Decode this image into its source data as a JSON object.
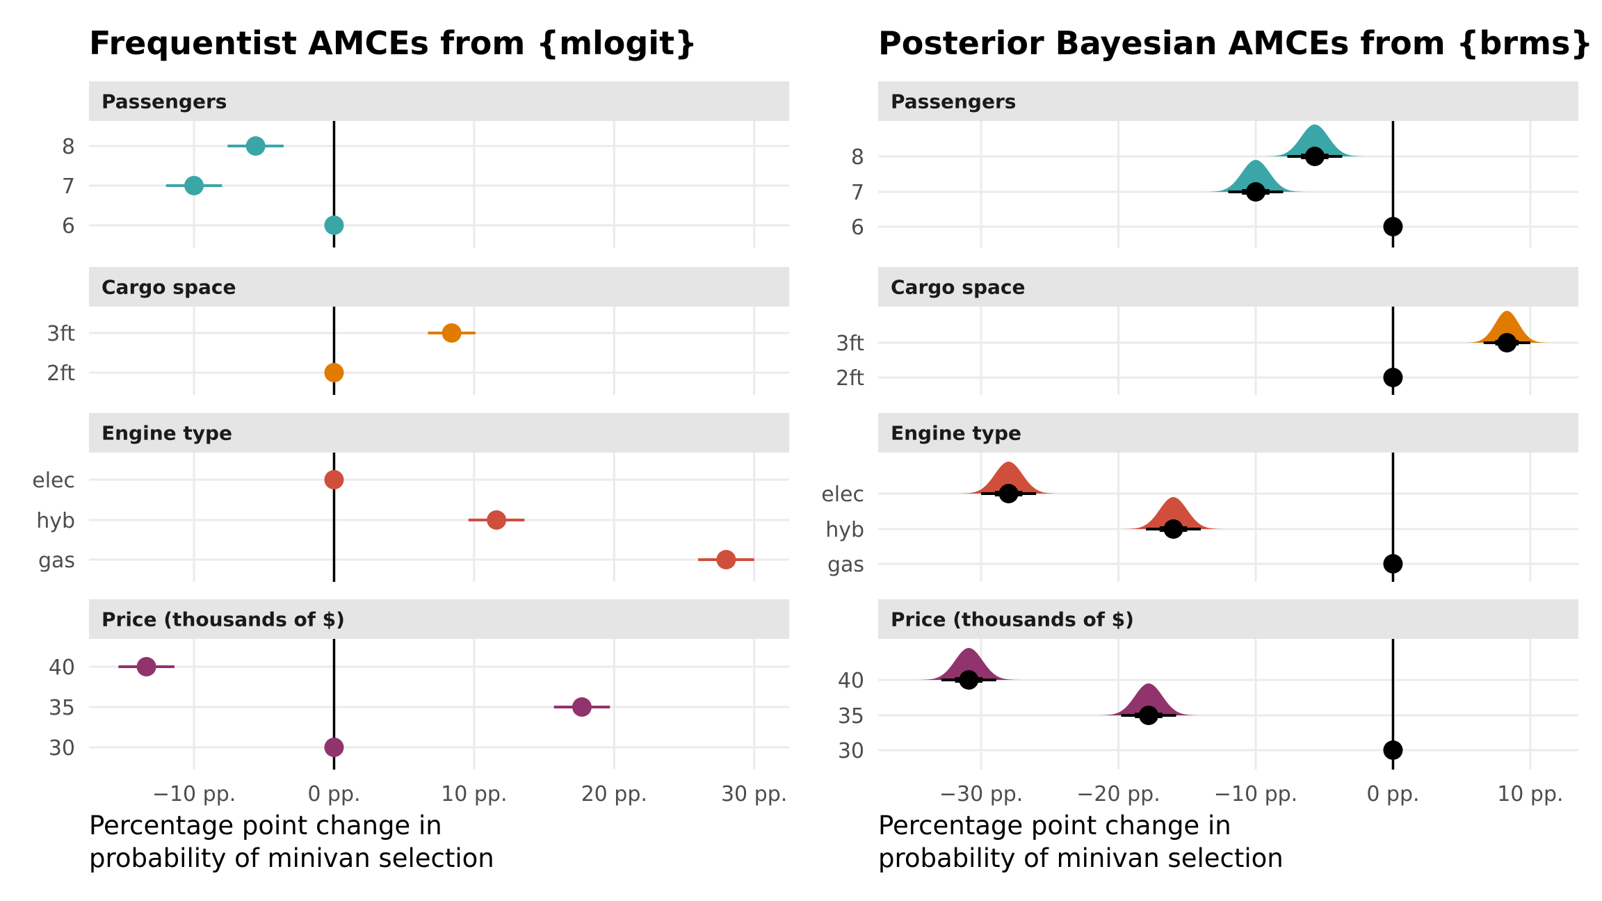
{
  "colors": {
    "Passengers": "#3aa6a8",
    "Cargo space": "#e07b00",
    "Engine type": "#cf4f3c",
    "Price (thousands of $)": "#91336d",
    "grid": "#ebebeb",
    "strip": "#e5e5e5",
    "zero_line": "#000000",
    "posterior_point": "#000000"
  },
  "chart_data": [
    {
      "type": "scatter",
      "title": "Frequentist AMCEs from {mlogit}",
      "xlabel": "Percentage point change in probability of minivan selection",
      "xlabel_lines": [
        "Percentage point change in",
        "probability of minivan selection"
      ],
      "ylabel": "",
      "xlim": [
        -17.5,
        32.5
      ],
      "x_ticks": [
        -10,
        0,
        10,
        20,
        30
      ],
      "x_tick_labels": [
        "−10 pp.",
        "0 pp.",
        "10 pp.",
        "20 pp.",
        "30 pp."
      ],
      "grid": true,
      "facets": [
        {
          "name": "Passengers",
          "levels": [
            "8",
            "7",
            "6"
          ],
          "estimates": [
            -5.6,
            -10.0,
            0
          ],
          "lower": [
            -7.6,
            -12.0,
            0
          ],
          "upper": [
            -3.6,
            -8.0,
            0
          ]
        },
        {
          "name": "Cargo space",
          "levels": [
            "3ft",
            "2ft"
          ],
          "estimates": [
            8.4,
            0
          ],
          "lower": [
            6.7,
            0
          ],
          "upper": [
            10.1,
            0
          ]
        },
        {
          "name": "Engine type",
          "levels": [
            "elec",
            "hyb",
            "gas"
          ],
          "estimates": [
            0,
            11.6,
            28.0
          ],
          "lower": [
            0,
            9.6,
            26.0
          ],
          "upper": [
            0,
            13.6,
            30.0
          ]
        },
        {
          "name": "Price (thousands of $)",
          "levels": [
            "40",
            "35",
            "30"
          ],
          "estimates": [
            -13.4,
            17.7,
            0
          ],
          "lower": [
            -15.4,
            15.7,
            0
          ],
          "upper": [
            -11.4,
            19.7,
            0
          ]
        }
      ]
    },
    {
      "type": "scatter",
      "title": "Posterior Bayesian AMCEs from {brms}",
      "xlabel": "Percentage point change in probability of minivan selection",
      "xlabel_lines": [
        "Percentage point change in",
        "probability of minivan selection"
      ],
      "ylabel": "",
      "xlim": [
        -37.5,
        13.5
      ],
      "x_ticks": [
        -30,
        -20,
        -10,
        0,
        10
      ],
      "x_tick_labels": [
        "−30 pp.",
        "−20 pp.",
        "−10 pp.",
        "0 pp.",
        "10 pp."
      ],
      "grid": true,
      "facets": [
        {
          "name": "Passengers",
          "levels": [
            "8",
            "7",
            "6"
          ],
          "estimates": [
            -5.7,
            -10.0,
            0
          ],
          "lower": [
            -7.7,
            -12.0,
            0
          ],
          "upper": [
            -3.7,
            -8.0,
            0
          ]
        },
        {
          "name": "Cargo space",
          "levels": [
            "3ft",
            "2ft"
          ],
          "estimates": [
            8.3,
            0
          ],
          "lower": [
            6.6,
            0
          ],
          "upper": [
            10.0,
            0
          ]
        },
        {
          "name": "Engine type",
          "levels": [
            "elec",
            "hyb",
            "gas"
          ],
          "estimates": [
            -28.0,
            -16.0,
            0
          ],
          "lower": [
            -30.0,
            -18.0,
            0
          ],
          "upper": [
            -26.0,
            -14.0,
            0
          ]
        },
        {
          "name": "Price (thousands of $)",
          "levels": [
            "40",
            "35",
            "30"
          ],
          "estimates": [
            -30.9,
            -17.8,
            0
          ],
          "lower": [
            -32.9,
            -19.8,
            0
          ],
          "upper": [
            -28.9,
            -15.8,
            0
          ]
        }
      ]
    }
  ]
}
